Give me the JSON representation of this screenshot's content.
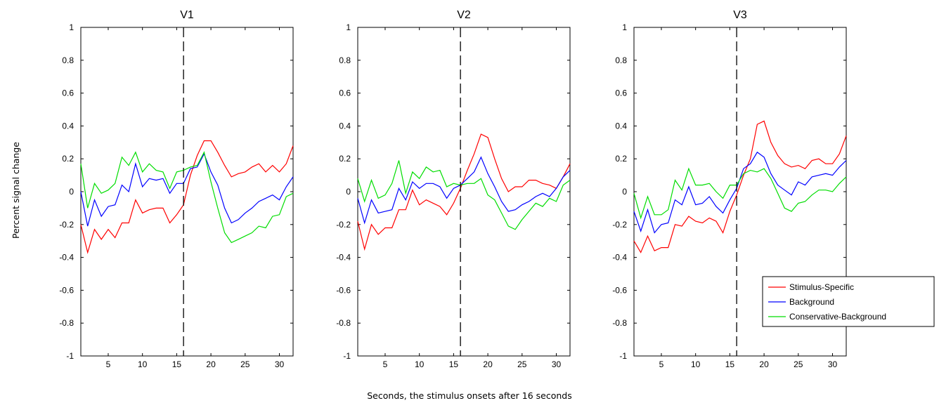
{
  "figure": {
    "ylabel": "Percent signal change",
    "xlabel": "Seconds, the stimulus onsets after 16 seconds"
  },
  "colors": {
    "Stimulus-Specific": "#ff0000",
    "Background": "#0000ff",
    "Conservative-Background": "#00dd00"
  },
  "chart_data": [
    {
      "type": "line",
      "title": "V1",
      "xlim": [
        1,
        32
      ],
      "ylim": [
        -1,
        1
      ],
      "xticks": [
        5,
        10,
        15,
        20,
        25,
        30
      ],
      "yticks": [
        -1,
        -0.8,
        -0.6,
        -0.4,
        -0.2,
        0,
        0.2,
        0.4,
        0.6,
        0.8,
        1
      ],
      "vline": 16,
      "x": [
        1,
        2,
        3,
        4,
        5,
        6,
        7,
        8,
        9,
        10,
        11,
        12,
        13,
        14,
        15,
        16,
        17,
        18,
        19,
        20,
        21,
        22,
        23,
        24,
        25,
        26,
        27,
        28,
        29,
        30,
        31,
        32
      ],
      "series": [
        {
          "name": "Stimulus-Specific",
          "values": [
            -0.2,
            -0.37,
            -0.23,
            -0.29,
            -0.23,
            -0.28,
            -0.19,
            -0.19,
            -0.05,
            -0.13,
            -0.11,
            -0.1,
            -0.1,
            -0.19,
            -0.14,
            -0.08,
            0.1,
            0.22,
            0.31,
            0.31,
            0.24,
            0.16,
            0.09,
            0.11,
            0.12,
            0.15,
            0.17,
            0.12,
            0.16,
            0.12,
            0.17,
            0.28
          ]
        },
        {
          "name": "Background",
          "values": [
            0.0,
            -0.21,
            -0.05,
            -0.15,
            -0.09,
            -0.08,
            0.04,
            0.0,
            0.17,
            0.03,
            0.08,
            0.07,
            0.08,
            -0.01,
            0.05,
            0.05,
            0.14,
            0.15,
            0.23,
            0.12,
            0.04,
            -0.1,
            -0.19,
            -0.17,
            -0.13,
            -0.1,
            -0.06,
            -0.04,
            -0.02,
            -0.05,
            0.03,
            0.09
          ]
        },
        {
          "name": "Conservative-Background",
          "values": [
            0.17,
            -0.1,
            0.05,
            -0.01,
            0.01,
            0.05,
            0.21,
            0.16,
            0.24,
            0.12,
            0.17,
            0.13,
            0.12,
            0.02,
            0.12,
            0.13,
            0.15,
            0.16,
            0.24,
            0.06,
            -0.1,
            -0.25,
            -0.31,
            -0.29,
            -0.27,
            -0.25,
            -0.21,
            -0.22,
            -0.15,
            -0.14,
            -0.03,
            -0.01
          ]
        }
      ]
    },
    {
      "type": "line",
      "title": "V2",
      "xlim": [
        1,
        32
      ],
      "ylim": [
        -1,
        1
      ],
      "xticks": [
        5,
        10,
        15,
        20,
        25,
        30
      ],
      "yticks": [
        -1,
        -0.8,
        -0.6,
        -0.4,
        -0.2,
        0,
        0.2,
        0.4,
        0.6,
        0.8,
        1
      ],
      "vline": 16,
      "x": [
        1,
        2,
        3,
        4,
        5,
        6,
        7,
        8,
        9,
        10,
        11,
        12,
        13,
        14,
        15,
        16,
        17,
        18,
        19,
        20,
        21,
        22,
        23,
        24,
        25,
        26,
        27,
        28,
        29,
        30,
        31,
        32
      ],
      "series": [
        {
          "name": "Stimulus-Specific",
          "values": [
            -0.18,
            -0.35,
            -0.2,
            -0.26,
            -0.22,
            -0.22,
            -0.11,
            -0.11,
            0.01,
            -0.08,
            -0.05,
            -0.07,
            -0.09,
            -0.14,
            -0.07,
            0.02,
            0.13,
            0.23,
            0.35,
            0.33,
            0.2,
            0.08,
            0.0,
            0.03,
            0.03,
            0.07,
            0.07,
            0.05,
            0.04,
            0.02,
            0.09,
            0.17
          ]
        },
        {
          "name": "Background",
          "values": [
            -0.04,
            -0.19,
            -0.05,
            -0.13,
            -0.12,
            -0.11,
            0.02,
            -0.05,
            0.06,
            0.02,
            0.05,
            0.05,
            0.03,
            -0.04,
            0.02,
            0.04,
            0.08,
            0.12,
            0.21,
            0.11,
            0.03,
            -0.06,
            -0.12,
            -0.11,
            -0.08,
            -0.06,
            -0.03,
            -0.01,
            -0.03,
            0.02,
            0.09,
            0.13
          ]
        },
        {
          "name": "Conservative-Background",
          "values": [
            0.08,
            -0.06,
            0.07,
            -0.04,
            -0.02,
            0.05,
            0.19,
            -0.01,
            0.12,
            0.08,
            0.15,
            0.12,
            0.13,
            0.03,
            0.05,
            0.04,
            0.05,
            0.05,
            0.08,
            -0.02,
            -0.05,
            -0.13,
            -0.21,
            -0.23,
            -0.17,
            -0.12,
            -0.07,
            -0.09,
            -0.04,
            -0.06,
            0.04,
            0.07
          ]
        }
      ]
    },
    {
      "type": "line",
      "title": "V3",
      "xlim": [
        1,
        32
      ],
      "ylim": [
        -1,
        1
      ],
      "xticks": [
        5,
        10,
        15,
        20,
        25,
        30
      ],
      "yticks": [
        -1,
        -0.8,
        -0.6,
        -0.4,
        -0.2,
        0,
        0.2,
        0.4,
        0.6,
        0.8,
        1
      ],
      "vline": 16,
      "legend": "bottom-right",
      "x": [
        1,
        2,
        3,
        4,
        5,
        6,
        7,
        8,
        9,
        10,
        11,
        12,
        13,
        14,
        15,
        16,
        17,
        18,
        19,
        20,
        21,
        22,
        23,
        24,
        25,
        26,
        27,
        28,
        29,
        30,
        31,
        32
      ],
      "series": [
        {
          "name": "Stimulus-Specific",
          "values": [
            -0.3,
            -0.37,
            -0.27,
            -0.36,
            -0.34,
            -0.34,
            -0.2,
            -0.21,
            -0.15,
            -0.18,
            -0.19,
            -0.16,
            -0.18,
            -0.25,
            -0.12,
            -0.02,
            0.1,
            0.2,
            0.41,
            0.43,
            0.3,
            0.22,
            0.17,
            0.15,
            0.16,
            0.14,
            0.19,
            0.2,
            0.17,
            0.17,
            0.23,
            0.34
          ]
        },
        {
          "name": "Background",
          "values": [
            -0.12,
            -0.24,
            -0.11,
            -0.25,
            -0.2,
            -0.19,
            -0.05,
            -0.08,
            0.03,
            -0.08,
            -0.07,
            -0.03,
            -0.09,
            -0.13,
            -0.05,
            0.02,
            0.14,
            0.17,
            0.24,
            0.21,
            0.11,
            0.04,
            0.01,
            -0.02,
            0.06,
            0.04,
            0.09,
            0.1,
            0.11,
            0.1,
            0.15,
            0.19
          ]
        },
        {
          "name": "Conservative-Background",
          "values": [
            -0.01,
            -0.16,
            -0.03,
            -0.14,
            -0.14,
            -0.11,
            0.07,
            0.01,
            0.14,
            0.04,
            0.04,
            0.05,
            0.0,
            -0.04,
            0.04,
            0.04,
            0.11,
            0.13,
            0.12,
            0.14,
            0.08,
            -0.01,
            -0.1,
            -0.12,
            -0.07,
            -0.06,
            -0.02,
            0.01,
            0.01,
            0.0,
            0.05,
            0.09
          ]
        }
      ]
    }
  ]
}
